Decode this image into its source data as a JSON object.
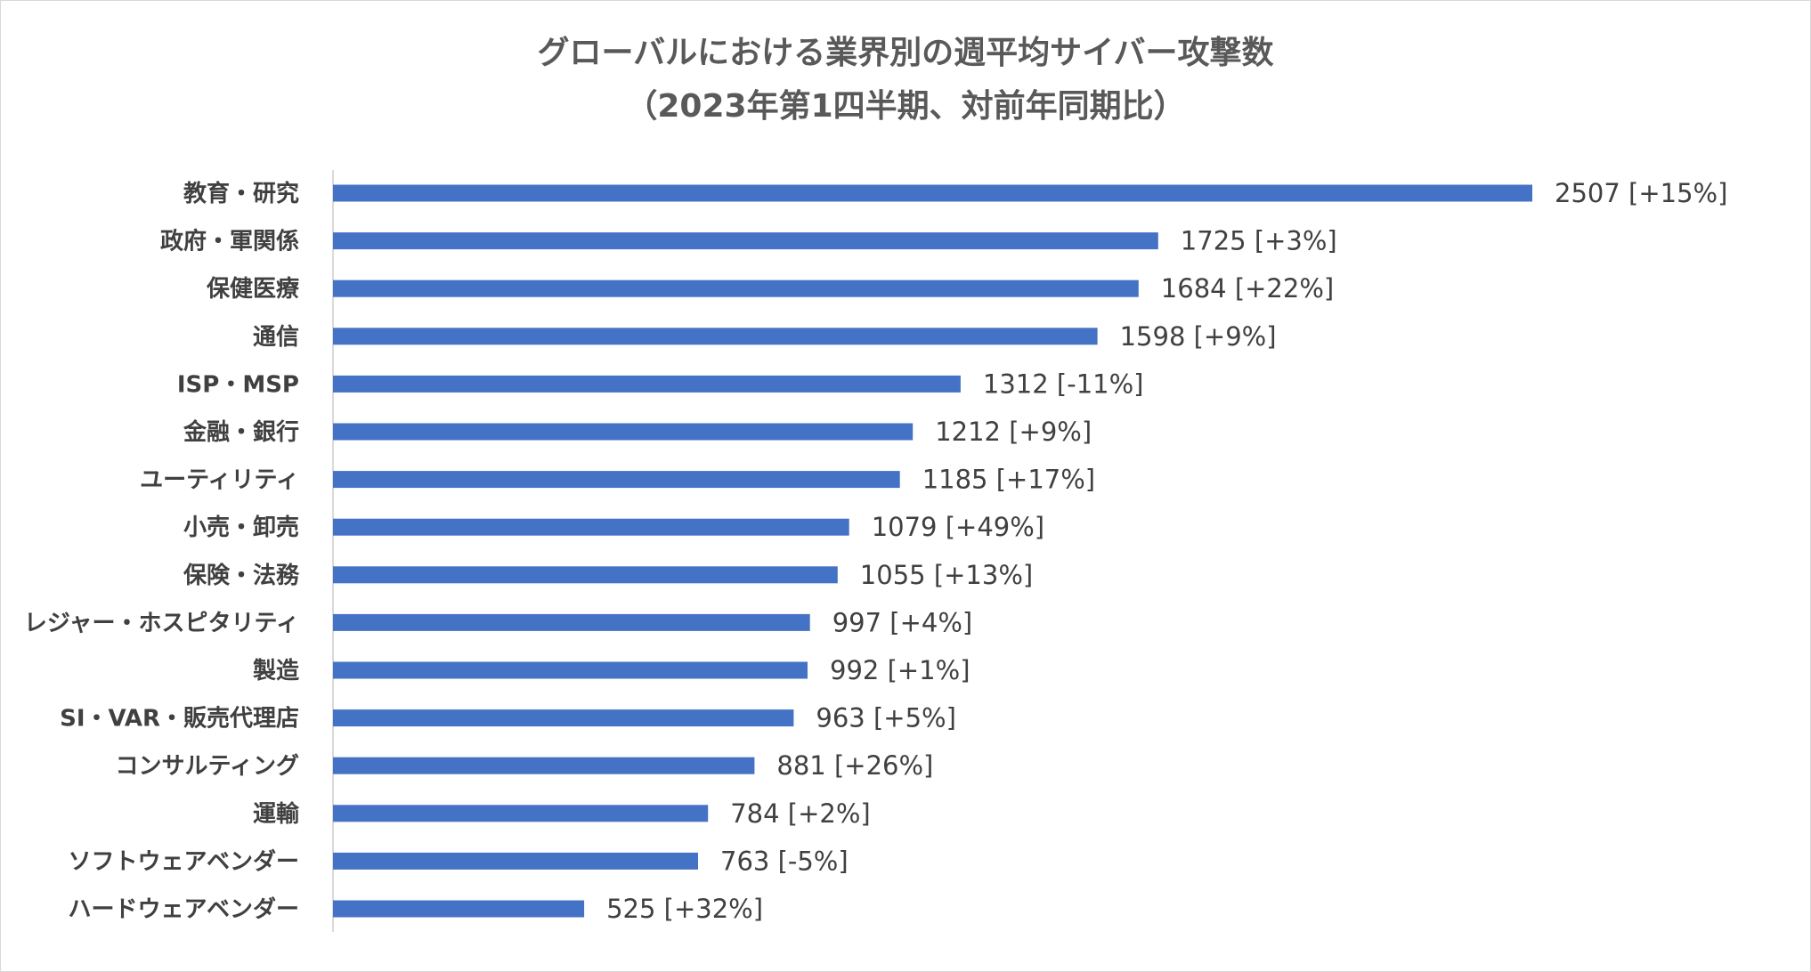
{
  "chart_data": {
    "type": "bar",
    "orientation": "horizontal",
    "title_line1": "グローバルにおける業界別の週平均サイバー攻撃数",
    "title_line2": "（2023年第1四半期、対前年同期比）",
    "categories": [
      "教育・研究",
      "政府・軍関係",
      "保健医療",
      "通信",
      "ISP・MSP",
      "金融・銀行",
      "ユーティリティ",
      "小売・卸売",
      "保険・法務",
      "レジャー・ホスピタリティ",
      "製造",
      "SI・VAR・販売代理店",
      "コンサルティング",
      "運輸",
      "ソフトウェアベンダー",
      "ハードウェアベンダー"
    ],
    "values": [
      2507,
      1725,
      1684,
      1598,
      1312,
      1212,
      1185,
      1079,
      1055,
      997,
      992,
      963,
      881,
      784,
      763,
      525
    ],
    "yoy_change": [
      "+15%",
      "+3%",
      "+22%",
      "+9%",
      "-11%",
      "+9%",
      "+17%",
      "+49%",
      "+13%",
      "+4%",
      "+1%",
      "+5%",
      "+26%",
      "+2%",
      "-5%",
      "+32%"
    ],
    "data_labels": [
      "2507 [+15%]",
      "1725 [+3%]",
      "1684 [+22%]",
      "1598 [+9%]",
      "1312 [-11%]",
      "1212 [+9%]",
      "1185 [+17%]",
      "1079 [+49%]",
      "1055 [+13%]",
      "997 [+4%]",
      "992 [+1%]",
      "963 [+5%]",
      "881 [+26%]",
      "784 [+2%]",
      "763 [-5%]",
      "525 [+32%]"
    ],
    "xlim": [
      0,
      2507
    ],
    "grid": false,
    "legend": "none",
    "xlabel": "",
    "ylabel": "",
    "bar_color": "#4472C4"
  }
}
